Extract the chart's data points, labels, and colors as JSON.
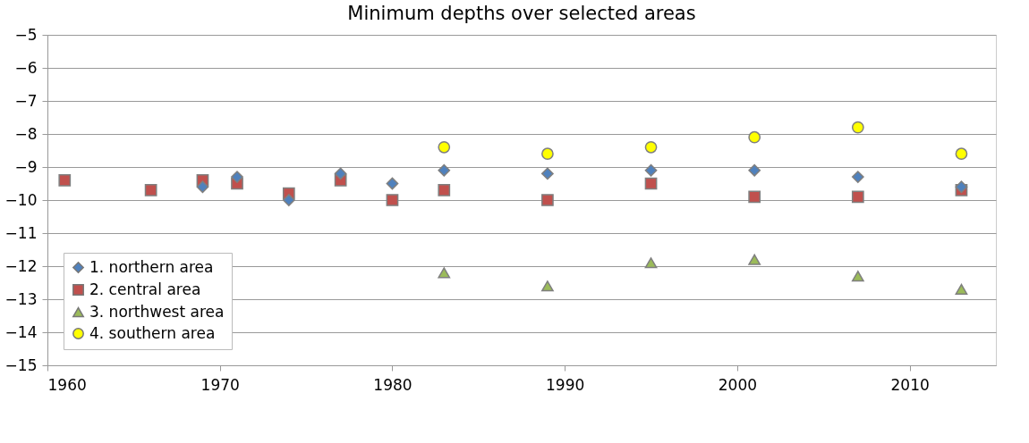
{
  "chart_data": {
    "type": "scatter",
    "title": "Minimum depths over selected areas",
    "xlim": [
      1960,
      2015
    ],
    "xticks": [
      1960,
      1970,
      1980,
      1990,
      2000,
      2010
    ],
    "ylim": [
      -15,
      -5
    ],
    "yticks": [
      -15,
      -14,
      -13,
      -12,
      -11,
      -10,
      -9,
      -8,
      -7,
      -6,
      -5
    ],
    "grid": "y",
    "legend": "bottom left",
    "series": [
      {
        "name": "1. northern area",
        "color": "#4f81bd",
        "marker": "diamond",
        "x": [
          1969,
          1971,
          1974,
          1977,
          1980,
          1983,
          1989,
          1995,
          2001,
          2007,
          2013
        ],
        "values": [
          -9.6,
          -9.3,
          -10.0,
          -9.2,
          -9.5,
          -9.1,
          -9.2,
          -9.1,
          -9.1,
          -9.3,
          -9.6
        ]
      },
      {
        "name": "2. central area",
        "color": "#c0504d",
        "marker": "square",
        "x": [
          1961,
          1966,
          1969,
          1971,
          1974,
          1977,
          1980,
          1983,
          1989,
          1995,
          2001,
          2007,
          2013
        ],
        "values": [
          -9.4,
          -9.7,
          -9.4,
          -9.5,
          -9.8,
          -9.4,
          -10.0,
          -9.7,
          -10.0,
          -9.5,
          -9.9,
          -9.9,
          -9.7
        ]
      },
      {
        "name": "3. northwest area",
        "color": "#9bbb59",
        "marker": "triangle",
        "x": [
          1983,
          1989,
          1995,
          2001,
          2007,
          2013
        ],
        "values": [
          -12.2,
          -12.6,
          -11.9,
          -11.8,
          -12.3,
          -12.7
        ]
      },
      {
        "name": "4. southern area",
        "color": "#ffff00",
        "marker": "circle",
        "x": [
          1983,
          1989,
          1995,
          2001,
          2007,
          2013
        ],
        "values": [
          -8.4,
          -8.6,
          -8.4,
          -8.1,
          -7.8,
          -8.6
        ]
      }
    ]
  }
}
